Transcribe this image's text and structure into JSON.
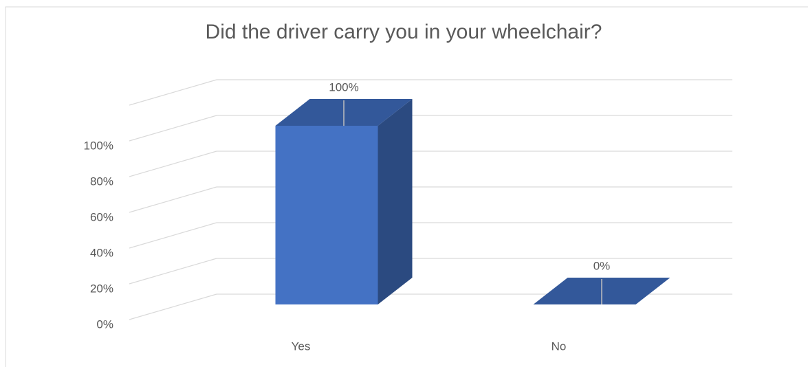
{
  "chart_data": {
    "type": "bar3d",
    "title": "Did the driver carry you in your wheelchair?",
    "categories": [
      "Yes",
      "No"
    ],
    "values": [
      100,
      0
    ],
    "value_labels": [
      "100%",
      "0%"
    ],
    "color": "#4472c4",
    "ylim": [
      0,
      120
    ],
    "yticks": [
      {
        "value": 0,
        "label": "0%"
      },
      {
        "value": 20,
        "label": "20%"
      },
      {
        "value": 40,
        "label": "40%"
      },
      {
        "value": 60,
        "label": "60%"
      },
      {
        "value": 80,
        "label": "80%"
      },
      {
        "value": 100,
        "label": "100%"
      }
    ],
    "grid": true
  }
}
